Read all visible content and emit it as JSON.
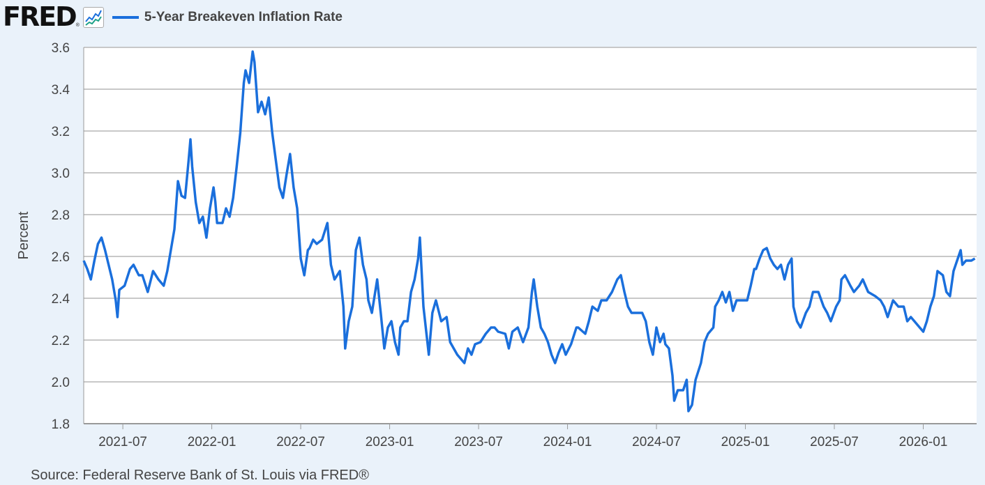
{
  "header": {
    "logo": "FRED",
    "logo_mark": "®",
    "series_title": "5-Year Breakeven Inflation Rate"
  },
  "source": "Source: Federal Reserve Bank of St. Louis via FRED®",
  "colors": {
    "line": "#1a6fdc",
    "background": "#eaf2fa",
    "plot": "#ffffff",
    "grid": "#c8c8c8"
  },
  "chart_data": {
    "type": "line",
    "title": "5-Year Breakeven Inflation Rate",
    "xlabel": "",
    "ylabel": "Percent",
    "ylim": [
      1.8,
      3.6
    ],
    "xlim": [
      2021.28,
      2026.3
    ],
    "yticks": [
      "1.8",
      "2.0",
      "2.2",
      "2.4",
      "2.6",
      "2.8",
      "3.0",
      "3.2",
      "3.4",
      "3.6"
    ],
    "xticks": [
      {
        "label": "2021-07",
        "t": 2021.5
      },
      {
        "label": "2022-01",
        "t": 2022.0
      },
      {
        "label": "2022-07",
        "t": 2022.5
      },
      {
        "label": "2023-01",
        "t": 2023.0
      },
      {
        "label": "2023-07",
        "t": 2023.5
      },
      {
        "label": "2024-01",
        "t": 2024.0
      },
      {
        "label": "2024-07",
        "t": 2024.5
      },
      {
        "label": "2025-01",
        "t": 2025.0
      },
      {
        "label": "2025-07",
        "t": 2025.5
      },
      {
        "label": "2026-01",
        "t": 2026.0
      }
    ],
    "grid": true,
    "legend": "top-left",
    "series": [
      {
        "name": "5-Year Breakeven Inflation Rate",
        "x_units": "fractional year",
        "points": [
          [
            2021.28,
            2.58
          ],
          [
            2021.3,
            2.54
          ],
          [
            2021.32,
            2.49
          ],
          [
            2021.34,
            2.58
          ],
          [
            2021.36,
            2.66
          ],
          [
            2021.38,
            2.69
          ],
          [
            2021.4,
            2.63
          ],
          [
            2021.42,
            2.56
          ],
          [
            2021.44,
            2.49
          ],
          [
            2021.46,
            2.39
          ],
          [
            2021.47,
            2.31
          ],
          [
            2021.48,
            2.44
          ],
          [
            2021.51,
            2.46
          ],
          [
            2021.54,
            2.54
          ],
          [
            2021.56,
            2.56
          ],
          [
            2021.59,
            2.51
          ],
          [
            2021.61,
            2.51
          ],
          [
            2021.64,
            2.43
          ],
          [
            2021.67,
            2.53
          ],
          [
            2021.7,
            2.49
          ],
          [
            2021.73,
            2.46
          ],
          [
            2021.75,
            2.53
          ],
          [
            2021.77,
            2.63
          ],
          [
            2021.79,
            2.73
          ],
          [
            2021.81,
            2.96
          ],
          [
            2021.83,
            2.89
          ],
          [
            2021.85,
            2.88
          ],
          [
            2021.87,
            3.06
          ],
          [
            2021.88,
            3.16
          ],
          [
            2021.89,
            3.03
          ],
          [
            2021.91,
            2.86
          ],
          [
            2021.93,
            2.76
          ],
          [
            2021.95,
            2.79
          ],
          [
            2021.97,
            2.69
          ],
          [
            2021.99,
            2.83
          ],
          [
            2022.01,
            2.93
          ],
          [
            2022.02,
            2.86
          ],
          [
            2022.03,
            2.76
          ],
          [
            2022.06,
            2.76
          ],
          [
            2022.08,
            2.83
          ],
          [
            2022.1,
            2.79
          ],
          [
            2022.12,
            2.88
          ],
          [
            2022.14,
            3.03
          ],
          [
            2022.16,
            3.19
          ],
          [
            2022.18,
            3.43
          ],
          [
            2022.19,
            3.49
          ],
          [
            2022.21,
            3.43
          ],
          [
            2022.23,
            3.58
          ],
          [
            2022.24,
            3.53
          ],
          [
            2022.26,
            3.29
          ],
          [
            2022.28,
            3.34
          ],
          [
            2022.3,
            3.28
          ],
          [
            2022.32,
            3.36
          ],
          [
            2022.34,
            3.19
          ],
          [
            2022.36,
            3.06
          ],
          [
            2022.38,
            2.93
          ],
          [
            2022.4,
            2.88
          ],
          [
            2022.42,
            2.99
          ],
          [
            2022.44,
            3.09
          ],
          [
            2022.46,
            2.93
          ],
          [
            2022.48,
            2.83
          ],
          [
            2022.5,
            2.59
          ],
          [
            2022.52,
            2.51
          ],
          [
            2022.54,
            2.63
          ],
          [
            2022.55,
            2.64
          ],
          [
            2022.57,
            2.68
          ],
          [
            2022.59,
            2.66
          ],
          [
            2022.62,
            2.68
          ],
          [
            2022.65,
            2.76
          ],
          [
            2022.67,
            2.56
          ],
          [
            2022.69,
            2.49
          ],
          [
            2022.72,
            2.53
          ],
          [
            2022.74,
            2.36
          ],
          [
            2022.75,
            2.16
          ],
          [
            2022.77,
            2.29
          ],
          [
            2022.79,
            2.36
          ],
          [
            2022.81,
            2.63
          ],
          [
            2022.83,
            2.69
          ],
          [
            2022.85,
            2.56
          ],
          [
            2022.87,
            2.49
          ],
          [
            2022.88,
            2.39
          ],
          [
            2022.9,
            2.33
          ],
          [
            2022.93,
            2.49
          ],
          [
            2022.95,
            2.33
          ],
          [
            2022.97,
            2.16
          ],
          [
            2022.99,
            2.26
          ],
          [
            2023.01,
            2.29
          ],
          [
            2023.03,
            2.19
          ],
          [
            2023.05,
            2.13
          ],
          [
            2023.06,
            2.26
          ],
          [
            2023.08,
            2.29
          ],
          [
            2023.1,
            2.29
          ],
          [
            2023.12,
            2.43
          ],
          [
            2023.14,
            2.49
          ],
          [
            2023.16,
            2.59
          ],
          [
            2023.17,
            2.69
          ],
          [
            2023.19,
            2.36
          ],
          [
            2023.22,
            2.13
          ],
          [
            2023.24,
            2.33
          ],
          [
            2023.26,
            2.39
          ],
          [
            2023.29,
            2.29
          ],
          [
            2023.32,
            2.31
          ],
          [
            2023.34,
            2.19
          ],
          [
            2023.36,
            2.16
          ],
          [
            2023.38,
            2.13
          ],
          [
            2023.42,
            2.09
          ],
          [
            2023.44,
            2.16
          ],
          [
            2023.46,
            2.13
          ],
          [
            2023.48,
            2.18
          ],
          [
            2023.51,
            2.19
          ],
          [
            2023.54,
            2.23
          ],
          [
            2023.57,
            2.26
          ],
          [
            2023.59,
            2.26
          ],
          [
            2023.61,
            2.24
          ],
          [
            2023.65,
            2.23
          ],
          [
            2023.67,
            2.16
          ],
          [
            2023.69,
            2.24
          ],
          [
            2023.72,
            2.26
          ],
          [
            2023.75,
            2.19
          ],
          [
            2023.78,
            2.26
          ],
          [
            2023.8,
            2.43
          ],
          [
            2023.81,
            2.49
          ],
          [
            2023.83,
            2.36
          ],
          [
            2023.85,
            2.26
          ],
          [
            2023.87,
            2.23
          ],
          [
            2023.89,
            2.19
          ],
          [
            2023.91,
            2.13
          ],
          [
            2023.93,
            2.09
          ],
          [
            2023.95,
            2.14
          ],
          [
            2023.97,
            2.18
          ],
          [
            2023.99,
            2.13
          ],
          [
            2024.02,
            2.18
          ],
          [
            2024.05,
            2.26
          ],
          [
            2024.06,
            2.26
          ],
          [
            2024.1,
            2.23
          ],
          [
            2024.12,
            2.29
          ],
          [
            2024.14,
            2.36
          ],
          [
            2024.17,
            2.34
          ],
          [
            2024.19,
            2.39
          ],
          [
            2024.22,
            2.39
          ],
          [
            2024.25,
            2.43
          ],
          [
            2024.28,
            2.49
          ],
          [
            2024.3,
            2.51
          ],
          [
            2024.32,
            2.43
          ],
          [
            2024.34,
            2.36
          ],
          [
            2024.36,
            2.33
          ],
          [
            2024.39,
            2.33
          ],
          [
            2024.42,
            2.33
          ],
          [
            2024.44,
            2.29
          ],
          [
            2024.46,
            2.19
          ],
          [
            2024.48,
            2.13
          ],
          [
            2024.5,
            2.26
          ],
          [
            2024.52,
            2.19
          ],
          [
            2024.54,
            2.23
          ],
          [
            2024.55,
            2.18
          ],
          [
            2024.57,
            2.16
          ],
          [
            2024.59,
            2.03
          ],
          [
            2024.6,
            1.91
          ],
          [
            2024.62,
            1.96
          ],
          [
            2024.65,
            1.96
          ],
          [
            2024.67,
            2.01
          ],
          [
            2024.68,
            1.86
          ],
          [
            2024.7,
            1.89
          ],
          [
            2024.72,
            2.01
          ],
          [
            2024.75,
            2.09
          ],
          [
            2024.77,
            2.19
          ],
          [
            2024.79,
            2.23
          ],
          [
            2024.82,
            2.26
          ],
          [
            2024.83,
            2.36
          ],
          [
            2024.85,
            2.39
          ],
          [
            2024.87,
            2.43
          ],
          [
            2024.89,
            2.38
          ],
          [
            2024.91,
            2.43
          ],
          [
            2024.93,
            2.34
          ],
          [
            2024.95,
            2.39
          ],
          [
            2024.97,
            2.39
          ],
          [
            2025.01,
            2.39
          ],
          [
            2025.03,
            2.46
          ],
          [
            2025.05,
            2.54
          ],
          [
            2025.06,
            2.54
          ],
          [
            2025.08,
            2.59
          ],
          [
            2025.1,
            2.63
          ],
          [
            2025.12,
            2.64
          ],
          [
            2025.14,
            2.59
          ],
          [
            2025.16,
            2.56
          ],
          [
            2025.18,
            2.54
          ],
          [
            2025.2,
            2.56
          ],
          [
            2025.22,
            2.49
          ],
          [
            2025.24,
            2.56
          ],
          [
            2025.26,
            2.59
          ],
          [
            2025.27,
            2.36
          ],
          [
            2025.29,
            2.29
          ],
          [
            2025.31,
            2.26
          ],
          [
            2025.34,
            2.33
          ],
          [
            2025.36,
            2.36
          ],
          [
            2025.38,
            2.43
          ],
          [
            2025.41,
            2.43
          ],
          [
            2025.44,
            2.36
          ],
          [
            2025.46,
            2.33
          ],
          [
            2025.48,
            2.29
          ],
          [
            2025.51,
            2.36
          ],
          [
            2025.53,
            2.39
          ],
          [
            2025.54,
            2.49
          ],
          [
            2025.56,
            2.51
          ],
          [
            2025.59,
            2.46
          ],
          [
            2025.61,
            2.43
          ],
          [
            2025.64,
            2.46
          ],
          [
            2025.66,
            2.49
          ],
          [
            2025.69,
            2.43
          ],
          [
            2025.73,
            2.41
          ],
          [
            2025.76,
            2.39
          ],
          [
            2025.78,
            2.36
          ],
          [
            2025.8,
            2.31
          ],
          [
            2025.83,
            2.39
          ],
          [
            2025.86,
            2.36
          ],
          [
            2025.89,
            2.36
          ],
          [
            2025.91,
            2.29
          ],
          [
            2025.93,
            2.31
          ],
          [
            2025.95,
            2.29
          ],
          [
            2025.98,
            2.26
          ],
          [
            2026.0,
            2.24
          ],
          [
            2026.02,
            2.29
          ],
          [
            2026.04,
            2.36
          ],
          [
            2026.06,
            2.41
          ],
          [
            2026.08,
            2.53
          ],
          [
            2026.11,
            2.51
          ],
          [
            2026.13,
            2.43
          ],
          [
            2026.15,
            2.41
          ],
          [
            2026.17,
            2.53
          ],
          [
            2026.19,
            2.58
          ],
          [
            2026.21,
            2.63
          ],
          [
            2026.22,
            2.56
          ],
          [
            2026.24,
            2.58
          ],
          [
            2026.27,
            2.58
          ],
          [
            2026.29,
            2.59
          ]
        ]
      }
    ]
  }
}
